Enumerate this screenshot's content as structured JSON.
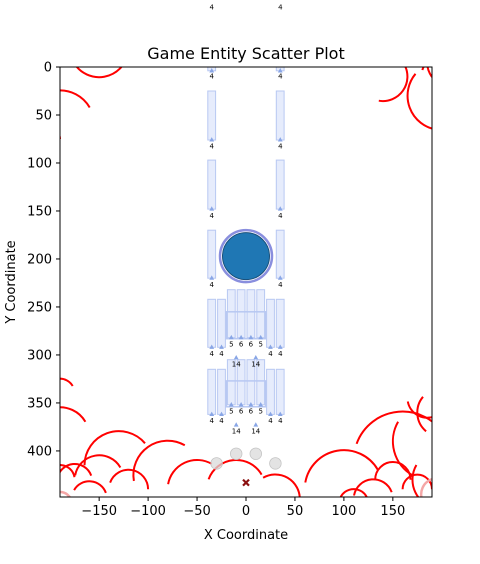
{
  "chart_data": {
    "type": "scatter",
    "title": "Game Entity Scatter Plot",
    "xlabel": "X Coordinate",
    "ylabel": "Y Coordinate",
    "xlim": [
      -190,
      190
    ],
    "ylim": [
      448,
      0
    ],
    "y_inverted": true,
    "x_ticks": [
      -150,
      -100,
      -50,
      0,
      50,
      100,
      150
    ],
    "x_tick_labels": [
      "−150",
      "−100",
      "−50",
      "0",
      "50",
      "100",
      "150"
    ],
    "y_ticks": [
      0,
      50,
      100,
      150,
      200,
      250,
      300,
      350,
      400
    ],
    "y_tick_labels": [
      "0",
      "50",
      "100",
      "150",
      "200",
      "250",
      "300",
      "350",
      "400"
    ],
    "grid": false,
    "colors": {
      "ring": "#ff0000",
      "ring_faint": "#f4a6a6",
      "column_fill": "#dde5fb",
      "column_edge": "#b8c8f2",
      "marker": "#89a6e6",
      "player": "#1f77b4",
      "player_edge": "#6b72d6",
      "pellet": "#d9d9d9",
      "cross": "#8b1010"
    },
    "player": {
      "x": 0,
      "y": 197,
      "r": 24
    },
    "cross": {
      "x": 0,
      "y": 433
    },
    "pellets": [
      {
        "x": -30,
        "y": 413
      },
      {
        "x": -10,
        "y": 403
      },
      {
        "x": 10,
        "y": 403
      },
      {
        "x": 30,
        "y": 413
      }
    ],
    "columns": [
      {
        "x": -35,
        "y_top": -40,
        "y_bottom": 4
      },
      {
        "x": 35,
        "y_top": -40,
        "y_bottom": 4
      },
      {
        "x": -35,
        "y_top": 25,
        "y_bottom": 76
      },
      {
        "x": 35,
        "y_top": 25,
        "y_bottom": 76
      },
      {
        "x": -35,
        "y_top": 97,
        "y_bottom": 148
      },
      {
        "x": 35,
        "y_top": 97,
        "y_bottom": 148
      },
      {
        "x": -35,
        "y_top": 170,
        "y_bottom": 220
      },
      {
        "x": 35,
        "y_top": 170,
        "y_bottom": 220
      },
      {
        "x": -35,
        "y_top": 242,
        "y_bottom": 292
      },
      {
        "x": -25,
        "y_top": 242,
        "y_bottom": 292
      },
      {
        "x": 25,
        "y_top": 242,
        "y_bottom": 292
      },
      {
        "x": 35,
        "y_top": 242,
        "y_bottom": 292
      },
      {
        "x": -15,
        "y_top": 232,
        "y_bottom": 282
      },
      {
        "x": -5,
        "y_top": 232,
        "y_bottom": 282
      },
      {
        "x": 5,
        "y_top": 232,
        "y_bottom": 282
      },
      {
        "x": 15,
        "y_top": 232,
        "y_bottom": 282
      },
      {
        "x": -35,
        "y_top": 315,
        "y_bottom": 362
      },
      {
        "x": -25,
        "y_top": 315,
        "y_bottom": 362
      },
      {
        "x": 25,
        "y_top": 315,
        "y_bottom": 362
      },
      {
        "x": 35,
        "y_top": 315,
        "y_bottom": 362
      },
      {
        "x": -15,
        "y_top": 305,
        "y_bottom": 352
      },
      {
        "x": -5,
        "y_top": 305,
        "y_bottom": 352
      },
      {
        "x": 5,
        "y_top": 305,
        "y_bottom": 352
      },
      {
        "x": 15,
        "y_top": 305,
        "y_bottom": 352
      }
    ],
    "panels": [
      {
        "x0": -20,
        "x1": 20,
        "y0": 255,
        "y1": 283
      },
      {
        "x0": -20,
        "x1": 20,
        "y0": 327,
        "y1": 354
      }
    ],
    "markers": [
      {
        "x": -35,
        "y": 4
      },
      {
        "x": 35,
        "y": 4
      },
      {
        "x": -35,
        "y": 76
      },
      {
        "x": 35,
        "y": 76
      },
      {
        "x": -35,
        "y": 148
      },
      {
        "x": 35,
        "y": 148
      },
      {
        "x": -35,
        "y": 220
      },
      {
        "x": 35,
        "y": 220
      },
      {
        "x": -35,
        "y": 292
      },
      {
        "x": -25,
        "y": 292
      },
      {
        "x": 25,
        "y": 292
      },
      {
        "x": 35,
        "y": 292
      },
      {
        "x": -15,
        "y": 282
      },
      {
        "x": -5,
        "y": 282
      },
      {
        "x": 5,
        "y": 282
      },
      {
        "x": 15,
        "y": 282
      },
      {
        "x": -10,
        "y": 303
      },
      {
        "x": 10,
        "y": 303
      },
      {
        "x": -35,
        "y": 362
      },
      {
        "x": -25,
        "y": 362
      },
      {
        "x": 25,
        "y": 362
      },
      {
        "x": 35,
        "y": 362
      },
      {
        "x": -15,
        "y": 352
      },
      {
        "x": -5,
        "y": 352
      },
      {
        "x": 5,
        "y": 352
      },
      {
        "x": 15,
        "y": 352
      },
      {
        "x": -10,
        "y": 373
      },
      {
        "x": 10,
        "y": 373
      }
    ],
    "labels": [
      {
        "x": -35,
        "y": -62,
        "text": "4"
      },
      {
        "x": 35,
        "y": -62,
        "text": "4"
      },
      {
        "x": -35,
        "y": 10,
        "text": "4"
      },
      {
        "x": 35,
        "y": 10,
        "text": "4"
      },
      {
        "x": -35,
        "y": 83,
        "text": "4"
      },
      {
        "x": 35,
        "y": 83,
        "text": "4"
      },
      {
        "x": -35,
        "y": 155,
        "text": "4"
      },
      {
        "x": 35,
        "y": 155,
        "text": "4"
      },
      {
        "x": -35,
        "y": 227,
        "text": "4"
      },
      {
        "x": 35,
        "y": 227,
        "text": "4"
      },
      {
        "x": -15,
        "y": 289,
        "text": "5"
      },
      {
        "x": -5,
        "y": 289,
        "text": "6"
      },
      {
        "x": 5,
        "y": 289,
        "text": "6"
      },
      {
        "x": 15,
        "y": 289,
        "text": "5"
      },
      {
        "x": -35,
        "y": 299,
        "text": "4"
      },
      {
        "x": -25,
        "y": 299,
        "text": "4"
      },
      {
        "x": 25,
        "y": 299,
        "text": "4"
      },
      {
        "x": 35,
        "y": 299,
        "text": "4"
      },
      {
        "x": -10,
        "y": 310,
        "text": "14"
      },
      {
        "x": 10,
        "y": 310,
        "text": "14"
      },
      {
        "x": -15,
        "y": 359,
        "text": "5"
      },
      {
        "x": -5,
        "y": 359,
        "text": "6"
      },
      {
        "x": 5,
        "y": 359,
        "text": "6"
      },
      {
        "x": 15,
        "y": 359,
        "text": "5"
      },
      {
        "x": -35,
        "y": 369,
        "text": "4"
      },
      {
        "x": -25,
        "y": 369,
        "text": "4"
      },
      {
        "x": 25,
        "y": 369,
        "text": "4"
      },
      {
        "x": 35,
        "y": 369,
        "text": "4"
      },
      {
        "x": -10,
        "y": 380,
        "text": "14"
      },
      {
        "x": 10,
        "y": 380,
        "text": "14"
      }
    ],
    "rings": [
      {
        "x": -190,
        "y": -12,
        "r": 20,
        "a0": 200,
        "a1": 345
      },
      {
        "x": -150,
        "y": -20,
        "r": 30,
        "a0": 10,
        "a1": 150
      },
      {
        "x": -190,
        "y": 60,
        "r": 35,
        "a0": 200,
        "a1": 330
      },
      {
        "x": -200,
        "y": 75,
        "r": 10,
        "a0": 200,
        "a1": 360
      },
      {
        "x": 120,
        "y": -8,
        "r": 10,
        "a0": 200,
        "a1": 340
      },
      {
        "x": 140,
        "y": 10,
        "r": 25,
        "a0": 330,
        "a1": 460
      },
      {
        "x": 190,
        "y": 5,
        "r": 10,
        "a0": 190,
        "a1": 360
      },
      {
        "x": 200,
        "y": 30,
        "r": 35,
        "a0": 100,
        "a1": 220
      },
      {
        "x": 210,
        "y": -5,
        "r": 25,
        "a0": 120,
        "a1": 250
      },
      {
        "x": -190,
        "y": 340,
        "r": 15,
        "a0": 200,
        "a1": 330
      },
      {
        "x": -190,
        "y": 385,
        "r": 30,
        "a0": 190,
        "a1": 330
      },
      {
        "x": -190,
        "y": 430,
        "r": 15,
        "a0": 200,
        "a1": 350
      },
      {
        "x": -175,
        "y": 432,
        "r": 18,
        "a0": 190,
        "a1": 340
      },
      {
        "x": -150,
        "y": 430,
        "r": 25,
        "a0": 190,
        "a1": 330
      },
      {
        "x": -130,
        "y": 415,
        "r": 35,
        "a0": 180,
        "a1": 320
      },
      {
        "x": -120,
        "y": 440,
        "r": 20,
        "a0": 200,
        "a1": 360
      },
      {
        "x": -160,
        "y": 450,
        "r": 18,
        "a0": 210,
        "a1": 340
      },
      {
        "x": -80,
        "y": 425,
        "r": 35,
        "a0": 170,
        "a1": 300
      },
      {
        "x": -50,
        "y": 440,
        "r": 30,
        "a0": 190,
        "a1": 300
      },
      {
        "x": -10,
        "y": 440,
        "r": 30,
        "a0": 200,
        "a1": 330
      },
      {
        "x": 30,
        "y": 450,
        "r": 25,
        "a0": 240,
        "a1": 360
      },
      {
        "x": 100,
        "y": 440,
        "r": 40,
        "a0": 190,
        "a1": 330
      },
      {
        "x": 110,
        "y": 455,
        "r": 15,
        "a0": 200,
        "a1": 340
      },
      {
        "x": 130,
        "y": 450,
        "r": 20,
        "a0": 190,
        "a1": 340
      },
      {
        "x": 150,
        "y": 430,
        "r": 18,
        "a0": 180,
        "a1": 360
      },
      {
        "x": 175,
        "y": 440,
        "r": 15,
        "a0": 180,
        "a1": 360
      },
      {
        "x": 160,
        "y": 410,
        "r": 50,
        "a0": 200,
        "a1": 330
      },
      {
        "x": 190,
        "y": 390,
        "r": 40,
        "a0": 120,
        "a1": 210
      },
      {
        "x": 200,
        "y": 360,
        "r": 25,
        "a0": 130,
        "a1": 220
      },
      {
        "x": 185,
        "y": 345,
        "r": 20,
        "a0": 60,
        "a1": 170
      },
      {
        "x": 200,
        "y": 430,
        "r": 30,
        "a0": 100,
        "a1": 210
      },
      {
        "x": -190,
        "y": 455,
        "r": 12,
        "a0": 200,
        "a1": 360,
        "faint": true
      },
      {
        "x": 195,
        "y": 445,
        "r": 16,
        "a0": 150,
        "a1": 260,
        "faint": true
      }
    ]
  }
}
